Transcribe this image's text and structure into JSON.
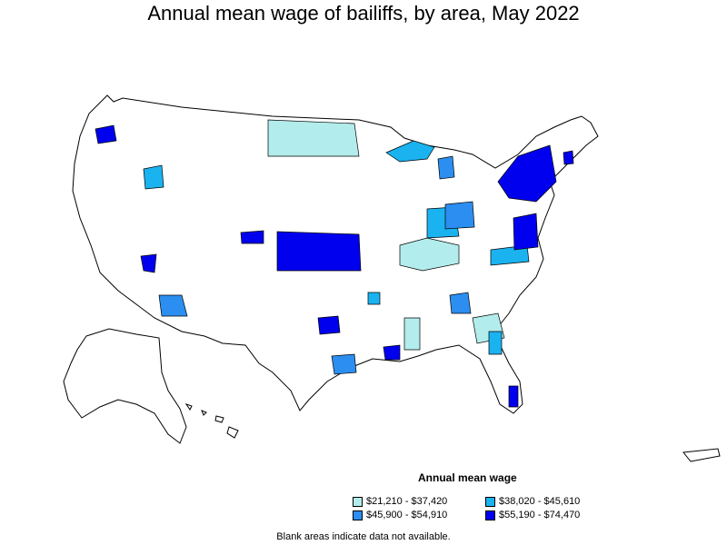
{
  "title": "Annual mean wage of bailiffs, by area, May 2022",
  "legend": {
    "title": "Annual mean wage",
    "items": [
      {
        "label": "$21,210 - $37,420",
        "color": "#b3ecec"
      },
      {
        "label": "$38,020 - $45,610",
        "color": "#1ab3f0"
      },
      {
        "label": "$45,900 - $54,910",
        "color": "#2b8ef0"
      },
      {
        "label": "$55,190 - $74,470",
        "color": "#0000ee"
      }
    ]
  },
  "note": "Blank areas indicate data not available.",
  "colors": {
    "empty": "#ffffff",
    "border": "#000000"
  }
}
